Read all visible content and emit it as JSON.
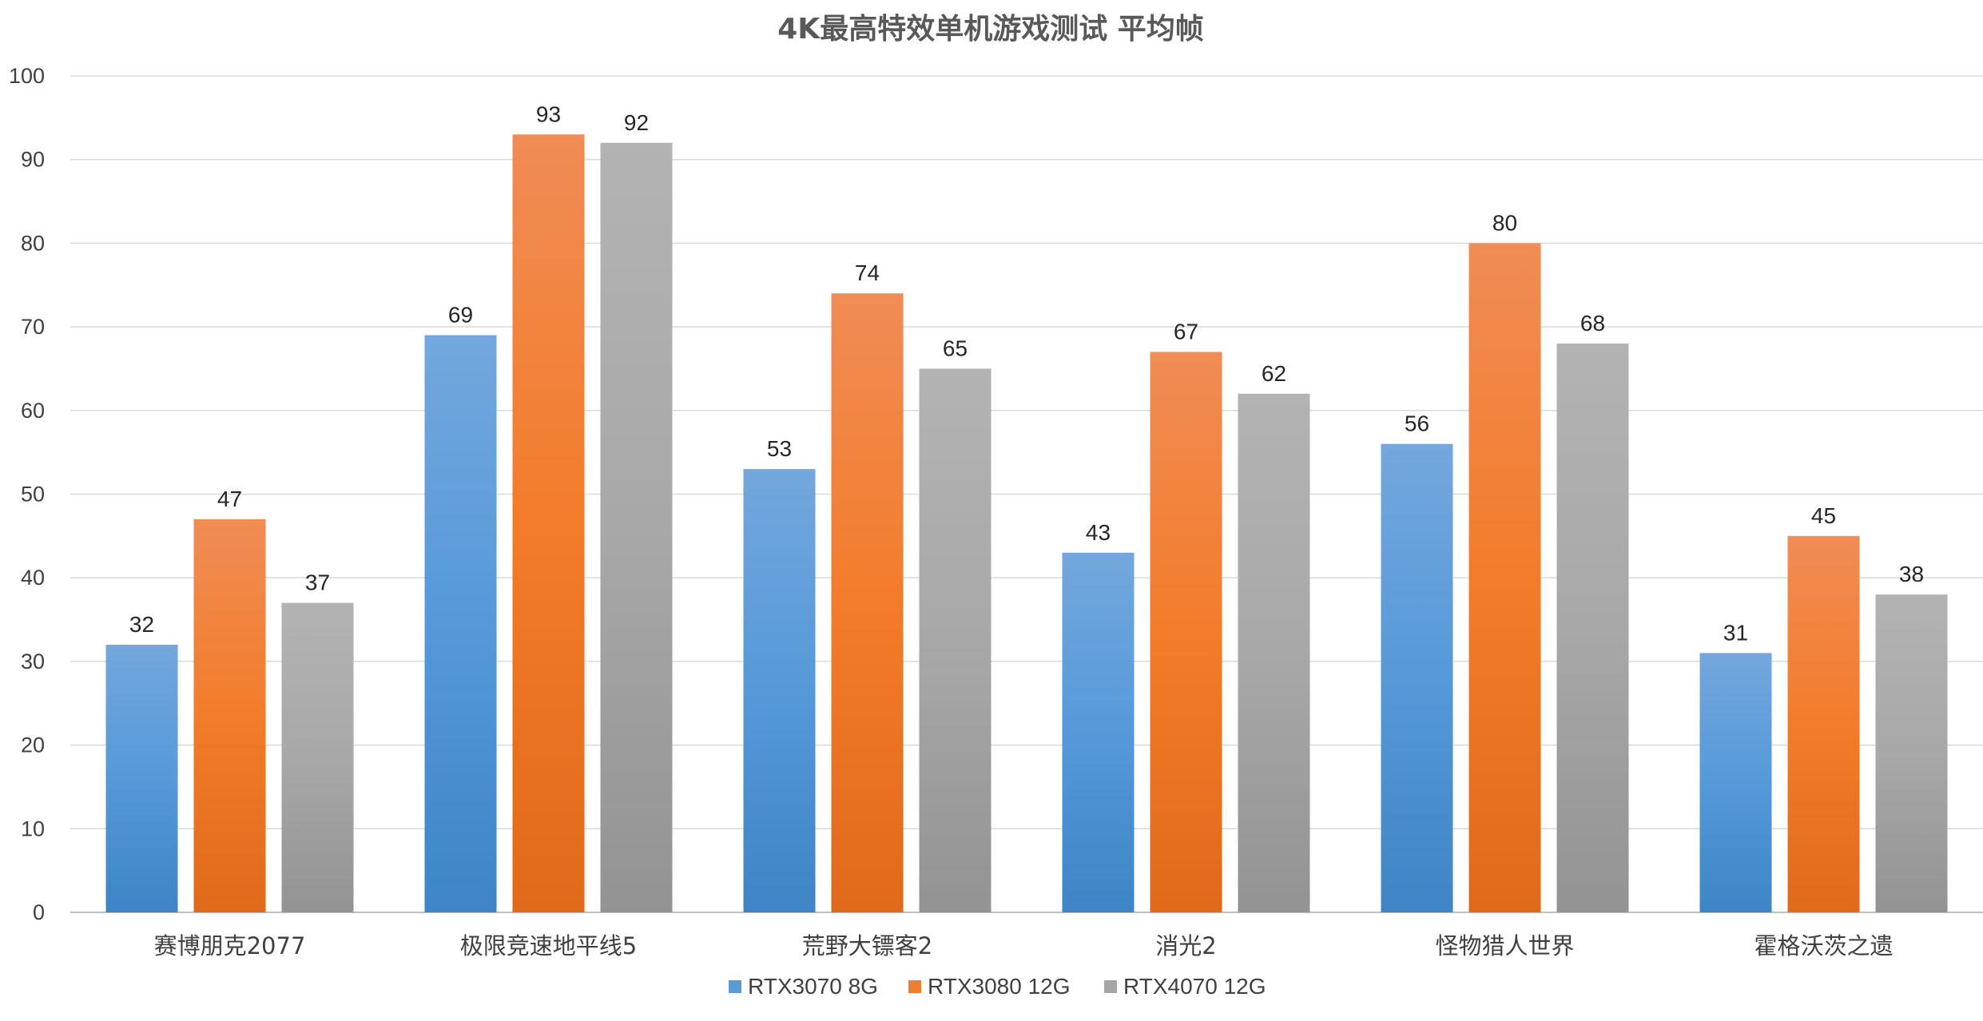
{
  "chart_data": {
    "type": "bar",
    "title": "4K最高特效单机游戏测试  平均帧",
    "xlabel": "",
    "ylabel": "",
    "ylim": [
      0,
      100
    ],
    "yticks": [
      0,
      10,
      20,
      30,
      40,
      50,
      60,
      70,
      80,
      90,
      100
    ],
    "grid": true,
    "legend_position": "bottom",
    "categories": [
      "赛博朋克2077",
      "极限竞速地平线5",
      "荒野大镖客2",
      "消光2",
      "怪物猎人世界",
      "霍格沃茨之遗"
    ],
    "series": [
      {
        "name": "RTX3070 8G",
        "color": "#5b9bd5",
        "values": [
          32,
          69,
          53,
          43,
          56,
          31
        ]
      },
      {
        "name": "RTX3080 12G",
        "color": "#ed7d31",
        "values": [
          47,
          93,
          74,
          67,
          80,
          45
        ]
      },
      {
        "name": "RTX4070 12G",
        "color": "#a5a5a5",
        "values": [
          37,
          92,
          65,
          62,
          68,
          38
        ]
      }
    ]
  }
}
